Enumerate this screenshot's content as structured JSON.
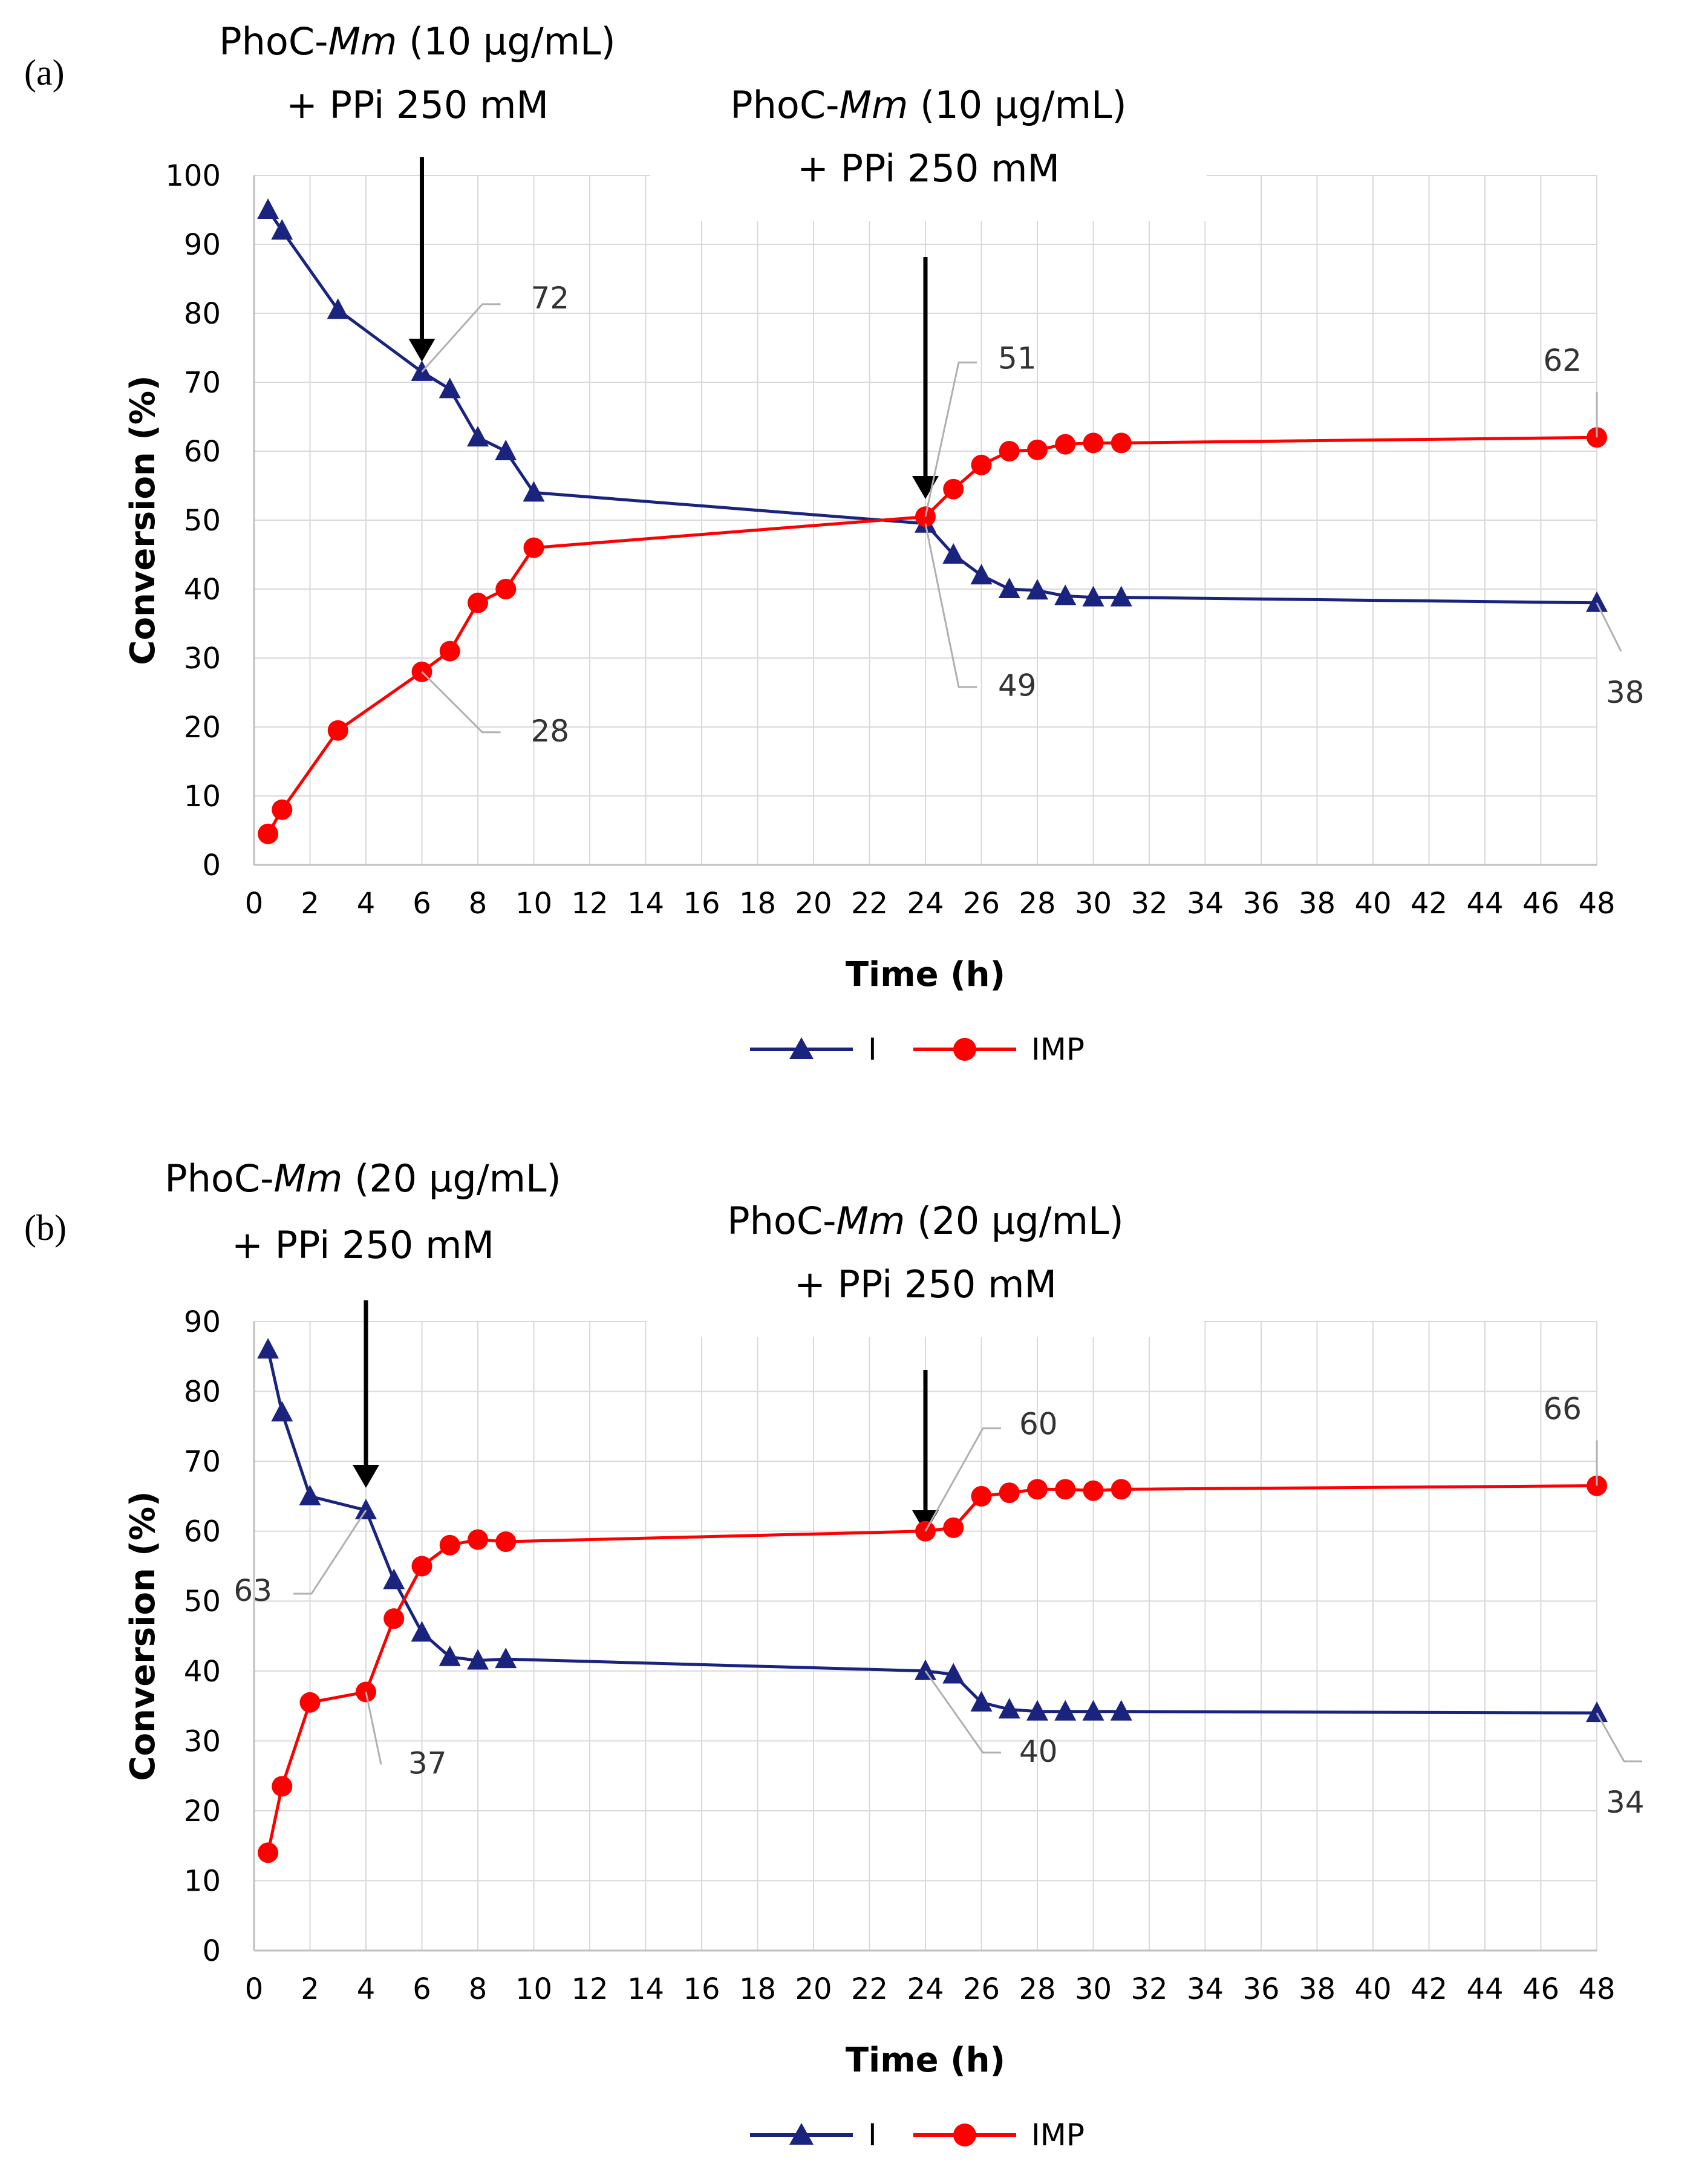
{
  "chart_data": [
    {
      "type": "line",
      "panel_label": "(a)",
      "xlabel": "Time (h)",
      "ylabel": "Conversion (%)",
      "xlim": [
        0,
        48
      ],
      "ylim": [
        0,
        100
      ],
      "xticks": [
        0,
        2,
        4,
        6,
        8,
        10,
        12,
        14,
        16,
        18,
        20,
        22,
        24,
        26,
        28,
        30,
        32,
        34,
        36,
        38,
        40,
        42,
        44,
        46,
        48
      ],
      "yticks": [
        0,
        10,
        20,
        30,
        40,
        50,
        60,
        70,
        80,
        90,
        100
      ],
      "grid": true,
      "legend": "bottom-center",
      "series": [
        {
          "name": "I",
          "color": "#1a237e",
          "marker": "triangle",
          "x": [
            0.5,
            1,
            3,
            6,
            7,
            8,
            9,
            10,
            24,
            25,
            26,
            27,
            28,
            29,
            30,
            31,
            48
          ],
          "y": [
            95,
            92,
            80.5,
            71.5,
            69,
            62,
            60,
            54,
            49.5,
            45,
            42,
            40,
            39.8,
            39,
            38.8,
            38.8,
            38
          ]
        },
        {
          "name": "IMP",
          "color": "#ff0000",
          "marker": "circle",
          "x": [
            0.5,
            1,
            3,
            6,
            7,
            8,
            9,
            10,
            24,
            25,
            26,
            27,
            28,
            29,
            30,
            31,
            48
          ],
          "y": [
            4.5,
            8,
            19.5,
            28,
            31,
            38,
            40,
            46,
            50.5,
            54.5,
            58,
            60,
            60.2,
            61,
            61.2,
            61.2,
            62
          ]
        }
      ],
      "annotations": [
        {
          "lines": [
            "PhoC-",
            "Mm",
            " (10 µg/mL)"
          ],
          "line2": "+ PPi 250 mM",
          "x": 6
        },
        {
          "lines": [
            "PhoC-",
            "Mm",
            " (10 µg/mL)"
          ],
          "line2": "+ PPi 250 mM",
          "x": 24
        }
      ],
      "data_labels": [
        {
          "text": "72",
          "x": 6,
          "y": 71.5
        },
        {
          "text": "28",
          "x": 6,
          "y": 28
        },
        {
          "text": "51",
          "x": 24,
          "y": 50.5
        },
        {
          "text": "49",
          "x": 24,
          "y": 49.5
        },
        {
          "text": "62",
          "x": 48,
          "y": 62
        },
        {
          "text": "38",
          "x": 48,
          "y": 38
        }
      ]
    },
    {
      "type": "line",
      "panel_label": "(b)",
      "xlabel": "Time (h)",
      "ylabel": "Conversion (%)",
      "xlim": [
        0,
        48
      ],
      "ylim": [
        0,
        90
      ],
      "xticks": [
        0,
        2,
        4,
        6,
        8,
        10,
        12,
        14,
        16,
        18,
        20,
        22,
        24,
        26,
        28,
        30,
        32,
        34,
        36,
        38,
        40,
        42,
        44,
        46,
        48
      ],
      "yticks": [
        0,
        10,
        20,
        30,
        40,
        50,
        60,
        70,
        80,
        90
      ],
      "grid": true,
      "legend": "bottom-center",
      "series": [
        {
          "name": "I",
          "color": "#1a237e",
          "marker": "triangle",
          "x": [
            0.5,
            1,
            2,
            4,
            5,
            6,
            7,
            8,
            9,
            24,
            25,
            26,
            27,
            28,
            29,
            30,
            31,
            48
          ],
          "y": [
            86,
            77,
            65,
            63,
            53,
            45.5,
            42,
            41.5,
            41.7,
            40,
            39.5,
            35.5,
            34.5,
            34.2,
            34.2,
            34.2,
            34.2,
            34
          ]
        },
        {
          "name": "IMP",
          "color": "#ff0000",
          "marker": "circle",
          "x": [
            0.5,
            1,
            2,
            4,
            5,
            6,
            7,
            8,
            9,
            24,
            25,
            26,
            27,
            28,
            29,
            30,
            31,
            48
          ],
          "y": [
            14,
            23.5,
            35.5,
            37,
            47.5,
            55,
            58,
            58.8,
            58.5,
            60,
            60.5,
            65,
            65.5,
            66,
            66,
            65.8,
            66,
            66.5
          ]
        }
      ],
      "annotations": [
        {
          "lines": [
            "PhoC-",
            "Mm",
            " (20 µg/mL)"
          ],
          "line2": "+ PPi 250 mM",
          "x": 4
        },
        {
          "lines": [
            "PhoC-",
            "Mm",
            " (20 µg/mL)"
          ],
          "line2": "+ PPi 250 mM",
          "x": 24
        }
      ],
      "data_labels": [
        {
          "text": "60",
          "x": 24,
          "y": 60
        },
        {
          "text": "63",
          "x": 4,
          "y": 63
        },
        {
          "text": "37",
          "x": 4,
          "y": 37
        },
        {
          "text": "40",
          "x": 24,
          "y": 40
        },
        {
          "text": "66",
          "x": 48,
          "y": 66.5
        },
        {
          "text": "34",
          "x": 48,
          "y": 34
        }
      ]
    }
  ]
}
